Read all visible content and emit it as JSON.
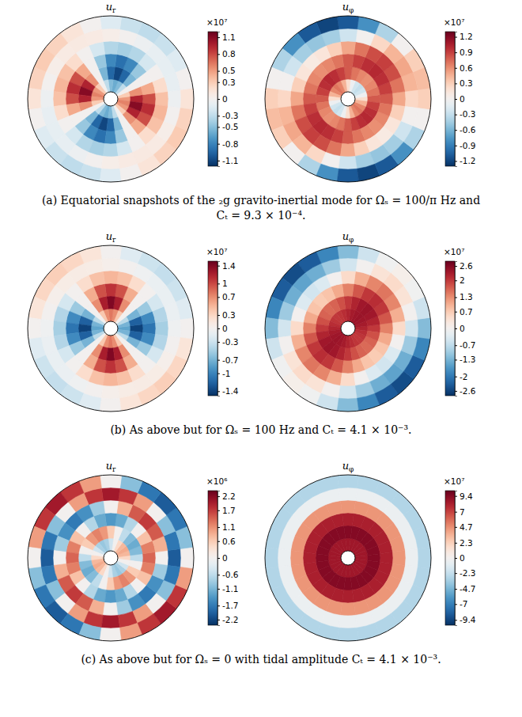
{
  "chart_data": [
    {
      "type": "polar_heatmap",
      "title": "u",
      "title_subscript": "r",
      "color": "RdBu_r",
      "colorbar": {
        "lim": [
          -1.2,
          1.2
        ],
        "ticks": [
          -1.1,
          -0.8,
          -0.5,
          -0.3,
          0,
          0.3,
          0.5,
          0.8,
          1.1
        ],
        "multiplier": "×10⁷"
      },
      "cells": [
        [
          0.52,
          0.3,
          0,
          -0.3,
          -0.52,
          -0.6,
          -0.52,
          -0.3,
          0,
          0.3,
          0.52,
          0.6,
          0.52,
          0.3,
          0,
          -0.3,
          -0.52,
          -0.6,
          -0.52,
          -0.3,
          0,
          0.3,
          0.52,
          0.6
        ],
        [
          0.95,
          0.55,
          0,
          -0.55,
          -0.95,
          -1.1,
          -0.95,
          -0.55,
          0,
          0.55,
          0.95,
          1.1,
          0.95,
          0.55,
          0,
          -0.55,
          -0.95,
          -1.1,
          -0.95,
          -0.55,
          0,
          0.55,
          0.95,
          1.1
        ],
        [
          0.78,
          0.45,
          0,
          -0.45,
          -0.78,
          -0.9,
          -0.78,
          -0.45,
          0,
          0.45,
          0.78,
          0.9,
          0.78,
          0.45,
          0,
          -0.45,
          -0.78,
          -0.9,
          -0.78,
          -0.45,
          0,
          0.45,
          0.78,
          0.9
        ],
        [
          0.35,
          0.2,
          0,
          -0.2,
          -0.35,
          -0.4,
          -0.35,
          -0.2,
          0,
          0.2,
          0.35,
          0.4,
          0.35,
          0.2,
          0,
          -0.2,
          -0.35,
          -0.4,
          -0.35,
          -0.2,
          0,
          0.2,
          0.35,
          0.4
        ],
        [
          -0.05,
          -0.09,
          -0.1,
          -0.09,
          -0.05,
          0,
          0.05,
          0.09,
          0.1,
          0.09,
          0.05,
          0,
          -0.05,
          -0.09,
          -0.1,
          -0.09,
          -0.05,
          0,
          0.05,
          0.09,
          0.1,
          0.09,
          0.05,
          0
        ],
        [
          0.15,
          0,
          -0.15,
          -0.26,
          -0.3,
          -0.26,
          -0.15,
          0,
          0.15,
          0.26,
          0.3,
          0.26,
          0.15,
          0,
          -0.15,
          -0.26,
          -0.3,
          -0.26,
          -0.15,
          0,
          0.15,
          0.26,
          0.3,
          0.26
        ]
      ]
    },
    {
      "type": "polar_heatmap",
      "title": "u",
      "title_subscript": "φ",
      "color": "RdBu_r",
      "colorbar": {
        "lim": [
          -1.3,
          1.3
        ],
        "ticks": [
          -1.2,
          -0.9,
          -0.6,
          -0.3,
          0,
          0.3,
          0.6,
          0.9,
          1.2
        ],
        "multiplier": "×10⁷"
      },
      "cells": [
        [
          0.2,
          -0.05,
          -0.24,
          -0.3,
          -0.24,
          -0.05,
          0.2,
          0.45,
          0.64,
          0.7,
          0.64,
          0.45,
          0.2,
          -0.05,
          -0.24,
          -0.3,
          -0.24,
          -0.05,
          0.2,
          0.45,
          0.64,
          0.7,
          0.64,
          0.45
        ],
        [
          0.8,
          0.7,
          0.63,
          0.6,
          0.63,
          0.7,
          0.8,
          0.9,
          0.97,
          1,
          0.97,
          0.9,
          0.8,
          0.7,
          0.63,
          0.6,
          0.63,
          0.7,
          0.8,
          0.9,
          0.97,
          1,
          0.97,
          0.9
        ],
        [
          0.8,
          0.9,
          0.97,
          1,
          0.97,
          0.9,
          0.8,
          0.7,
          0.63,
          0.6,
          0.63,
          0.7,
          0.8,
          0.9,
          0.97,
          1,
          0.97,
          0.9,
          0.8,
          0.7,
          0.63,
          0.6,
          0.63,
          0.7
        ],
        [
          0.5,
          0.7,
          0.85,
          0.9,
          0.85,
          0.7,
          0.5,
          0.3,
          0.15,
          0.1,
          0.15,
          0.3,
          0.5,
          0.7,
          0.85,
          0.9,
          0.85,
          0.7,
          0.5,
          0.3,
          0.15,
          0.1,
          0.15,
          0.3
        ],
        [
          0.25,
          0.44,
          0.5,
          0.44,
          0.25,
          0,
          -0.25,
          -0.44,
          -0.5,
          -0.44,
          -0.25,
          0,
          0.25,
          0.44,
          0.5,
          0.44,
          0.25,
          0,
          -0.25,
          -0.44,
          -0.5,
          -0.44,
          -0.25,
          0
        ],
        [
          0.3,
          0.4,
          0.3,
          0,
          -0.4,
          -0.8,
          -1.1,
          -1.2,
          -1.1,
          -0.8,
          -0.4,
          0,
          0.3,
          0.4,
          0.3,
          0,
          -0.4,
          -0.8,
          -1.1,
          -1.2,
          -1.1,
          -0.8,
          -0.4,
          0
        ]
      ]
    },
    {
      "type": "polar_heatmap",
      "title": "u",
      "title_subscript": "r",
      "color": "RdBu_r",
      "colorbar": {
        "lim": [
          -1.5,
          1.5
        ],
        "ticks": [
          -1.4,
          -1,
          -0.7,
          -0.3,
          0,
          0.3,
          0.7,
          1,
          1.4
        ],
        "multiplier": "×10⁷"
      },
      "cells": [
        [
          -0.8,
          -0.7,
          -0.4,
          0,
          0.4,
          0.7,
          0.8,
          0.7,
          0.4,
          0,
          -0.4,
          -0.7,
          -0.8,
          -0.7,
          -0.4,
          0,
          0.4,
          0.7,
          0.8,
          0.7,
          0.4,
          0,
          -0.4,
          -0.7
        ],
        [
          -1.4,
          -1.22,
          -0.7,
          0,
          0.7,
          1.22,
          1.4,
          1.22,
          0.7,
          0,
          -0.7,
          -1.22,
          -1.4,
          -1.22,
          -0.7,
          0,
          0.7,
          1.22,
          1.4,
          1.22,
          0.7,
          0,
          -0.7,
          -1.22
        ],
        [
          -1.1,
          -0.96,
          -0.55,
          0,
          0.55,
          0.96,
          1.1,
          0.96,
          0.55,
          0,
          -0.55,
          -0.96,
          -1.1,
          -0.96,
          -0.55,
          0,
          0.55,
          0.96,
          1.1,
          0.96,
          0.55,
          0,
          -0.55,
          -0.96
        ],
        [
          -0.5,
          -0.44,
          -0.25,
          0,
          0.25,
          0.44,
          0.5,
          0.44,
          0.25,
          0,
          -0.25,
          -0.44,
          -0.5,
          -0.44,
          -0.25,
          0,
          0.25,
          0.44,
          0.5,
          0.44,
          0.25,
          0,
          -0.25,
          -0.44
        ],
        [
          -0.05,
          -0.09,
          -0.1,
          -0.09,
          -0.05,
          0,
          0.05,
          0.09,
          0.1,
          0.09,
          0.05,
          0,
          -0.05,
          -0.09,
          -0.1,
          -0.09,
          -0.05,
          0,
          0.05,
          0.09,
          0.1,
          0.09,
          0.05,
          0
        ],
        [
          0,
          -0.18,
          -0.3,
          -0.35,
          -0.3,
          -0.18,
          0,
          0.18,
          0.3,
          0.35,
          0.3,
          0.18,
          0,
          -0.18,
          -0.3,
          -0.35,
          -0.3,
          -0.18,
          0,
          0.18,
          0.3,
          0.35,
          0.3,
          0.18
        ]
      ]
    },
    {
      "type": "polar_heatmap",
      "title": "u",
      "title_subscript": "φ",
      "color": "RdBu_r",
      "colorbar": {
        "lim": [
          -2.8,
          2.8
        ],
        "ticks": [
          -2.6,
          -2,
          -1.3,
          -0.7,
          0,
          0.7,
          1.3,
          2,
          2.6
        ],
        "multiplier": "×10⁷"
      },
      "cells": [
        [
          2.2,
          2.3,
          2.37,
          2.4,
          2.37,
          2.3,
          2.2,
          2.1,
          2.03,
          2,
          2.03,
          2.1,
          2.2,
          2.3,
          2.37,
          2.4,
          2.37,
          2.3,
          2.2,
          2.1,
          2.03,
          2,
          2.03,
          2.1
        ],
        [
          2,
          2.2,
          2.35,
          2.4,
          2.35,
          2.2,
          2,
          1.8,
          1.65,
          1.6,
          1.65,
          1.8,
          2,
          2.2,
          2.35,
          2.4,
          2.35,
          2.2,
          2,
          1.8,
          1.65,
          1.6,
          1.65,
          1.8
        ],
        [
          1.4,
          1.75,
          2.01,
          2.1,
          2.01,
          1.75,
          1.4,
          1.05,
          0.79,
          0.7,
          0.79,
          1.05,
          1.4,
          1.75,
          2.01,
          2.1,
          2.01,
          1.75,
          1.4,
          1.05,
          0.79,
          0.7,
          0.79,
          1.05
        ],
        [
          0.5,
          1,
          1.37,
          1.5,
          1.37,
          1,
          0.5,
          0,
          -0.37,
          -0.5,
          -0.37,
          0,
          0.5,
          1,
          1.37,
          1.5,
          1.37,
          1,
          0.5,
          0,
          -0.37,
          -0.5,
          -0.37,
          0
        ],
        [
          -0.5,
          0,
          0.37,
          0.5,
          0.37,
          0,
          -0.5,
          -1,
          -1.37,
          -1.5,
          -1.37,
          -1,
          -0.5,
          0,
          0.37,
          0.5,
          0.37,
          0,
          -0.5,
          -1,
          -1.37,
          -1.5,
          -1.37,
          -1
        ],
        [
          -1.2,
          -0.55,
          -0.07,
          0.1,
          -0.07,
          -0.55,
          -1.2,
          -1.85,
          -2.33,
          -2.5,
          -2.33,
          -1.85,
          -1.2,
          -0.55,
          -0.07,
          0.1,
          -0.07,
          -0.55,
          -1.2,
          -1.85,
          -2.33,
          -2.5,
          -2.33,
          -1.85
        ]
      ]
    },
    {
      "type": "polar_heatmap",
      "title": "u",
      "title_subscript": "r",
      "color": "RdBu_r",
      "colorbar": {
        "lim": [
          -2.4,
          2.4
        ],
        "ticks": [
          -2.2,
          -1.7,
          -1.1,
          -0.6,
          0,
          0.6,
          1.1,
          1.7,
          2.2
        ],
        "multiplier": "×10⁶"
      },
      "cells": [
        [
          0.45,
          0.78,
          0.9,
          0.78,
          0.45,
          0,
          -0.45,
          -0.78,
          -0.9,
          -0.78,
          -0.45,
          0,
          0.45,
          0.78,
          0.9,
          0.78,
          0.45,
          0,
          -0.45,
          -0.78,
          -0.9,
          -0.78,
          -0.45,
          0
        ],
        [
          -0.6,
          -1.04,
          -1.2,
          -1.04,
          -0.6,
          0,
          0.6,
          1.04,
          1.2,
          1.04,
          0.6,
          0,
          -0.6,
          -1.04,
          -1.2,
          -1.04,
          -0.6,
          0,
          0.6,
          1.04,
          1.2,
          1.04,
          0.6,
          0
        ],
        [
          1.4,
          1.22,
          0.7,
          0,
          -0.7,
          -1.22,
          -1.4,
          -1.22,
          -0.7,
          0,
          0.7,
          1.22,
          1.4,
          1.22,
          0.7,
          0,
          -0.7,
          -1.22,
          -1.4,
          -1.22,
          -0.7,
          0,
          0.7,
          1.22
        ],
        [
          0,
          0.85,
          1.48,
          1.7,
          1.48,
          0.85,
          0,
          -0.85,
          -1.48,
          -1.7,
          -1.48,
          -0.85,
          0,
          0.85,
          1.48,
          1.7,
          1.48,
          0.85,
          0,
          -0.85,
          -1.48,
          -1.7,
          -1.48,
          -0.85
        ],
        [
          -2,
          -1.74,
          -1,
          0,
          1,
          1.74,
          2,
          1.74,
          1,
          0,
          -1,
          -1.74,
          -2,
          -1.74,
          -1,
          0,
          1,
          1.74,
          2,
          1.74,
          1,
          0,
          -1,
          -1.74
        ],
        [
          0,
          -1,
          -1.74,
          -2,
          -1.74,
          -1,
          0,
          1,
          1.74,
          2,
          1.74,
          1,
          0,
          -1,
          -1.74,
          -2,
          -1.74,
          -1,
          0,
          1,
          1.74,
          2,
          1.74,
          1
        ]
      ]
    },
    {
      "type": "polar_heatmap",
      "title": "u",
      "title_subscript": "φ",
      "color": "RdBu_r",
      "colorbar": {
        "lim": [
          -10.2,
          10.2
        ],
        "ticks": [
          -9.4,
          -7,
          -4.7,
          -2.3,
          0,
          2.3,
          4.7,
          7,
          9.4
        ],
        "multiplier": "×10⁷"
      },
      "cells": [
        [
          8.6,
          8.6,
          8.6,
          8.6,
          8.6,
          8.6,
          8.6,
          8.6,
          8.6,
          8.6,
          8.6,
          8.6,
          8.6,
          8.6,
          8.6,
          8.6,
          8.6,
          8.6,
          8.6,
          8.6,
          8.6,
          8.6,
          8.6,
          8.6
        ],
        [
          9.4,
          9.4,
          9.4,
          9.4,
          9.4,
          9.4,
          9.4,
          9.4,
          9.4,
          9.4,
          9.4,
          9.4,
          9.4,
          9.4,
          9.4,
          9.4,
          9.4,
          9.4,
          9.4,
          9.4,
          9.4,
          9.4,
          9.4,
          9.4
        ],
        [
          8.2,
          8.2,
          8.2,
          8.2,
          8.2,
          8.2,
          8.2,
          8.2,
          8.2,
          8.2,
          8.2,
          8.2,
          8.2,
          8.2,
          8.2,
          8.2,
          8.2,
          8.2,
          8.2,
          8.2,
          8.2,
          8.2,
          8.2,
          8.2
        ],
        [
          4.5,
          4.5,
          4.5,
          4.5,
          4.5,
          4.5,
          4.5,
          4.5,
          4.5,
          4.5,
          4.5,
          4.5,
          4.5,
          4.5,
          4.5,
          4.5,
          4.5,
          4.5,
          4.5,
          4.5,
          4.5,
          4.5,
          4.5,
          4.5
        ],
        [
          -0.5,
          -0.5,
          -0.5,
          -0.5,
          -0.5,
          -0.5,
          -0.5,
          -0.5,
          -0.5,
          -0.5,
          -0.5,
          -0.5,
          -0.5,
          -0.5,
          -0.5,
          -0.5,
          -0.5,
          -0.5,
          -0.5,
          -0.5,
          -0.5,
          -0.5,
          -0.5,
          -0.5
        ],
        [
          -3,
          -3,
          -3,
          -3,
          -3,
          -3,
          -3,
          -3,
          -3,
          -3,
          -3,
          -3,
          -3,
          -3,
          -3,
          -3,
          -3,
          -3,
          -3,
          -3,
          -3,
          -3,
          -3,
          -3
        ]
      ]
    }
  ],
  "captions": [
    "(a) Equatorial snapshots of the ₂g gravito-inertial mode for Ωₛ = 100/π Hz and Cₜ = 9.3 × 10⁻⁴.",
    "(b) As above but for Ωₛ = 100 Hz and Cₜ = 4.1 × 10⁻³.",
    "(c) As above but for Ωₛ = 0 with tidal amplitude Cₜ = 4.1 × 10⁻³."
  ]
}
